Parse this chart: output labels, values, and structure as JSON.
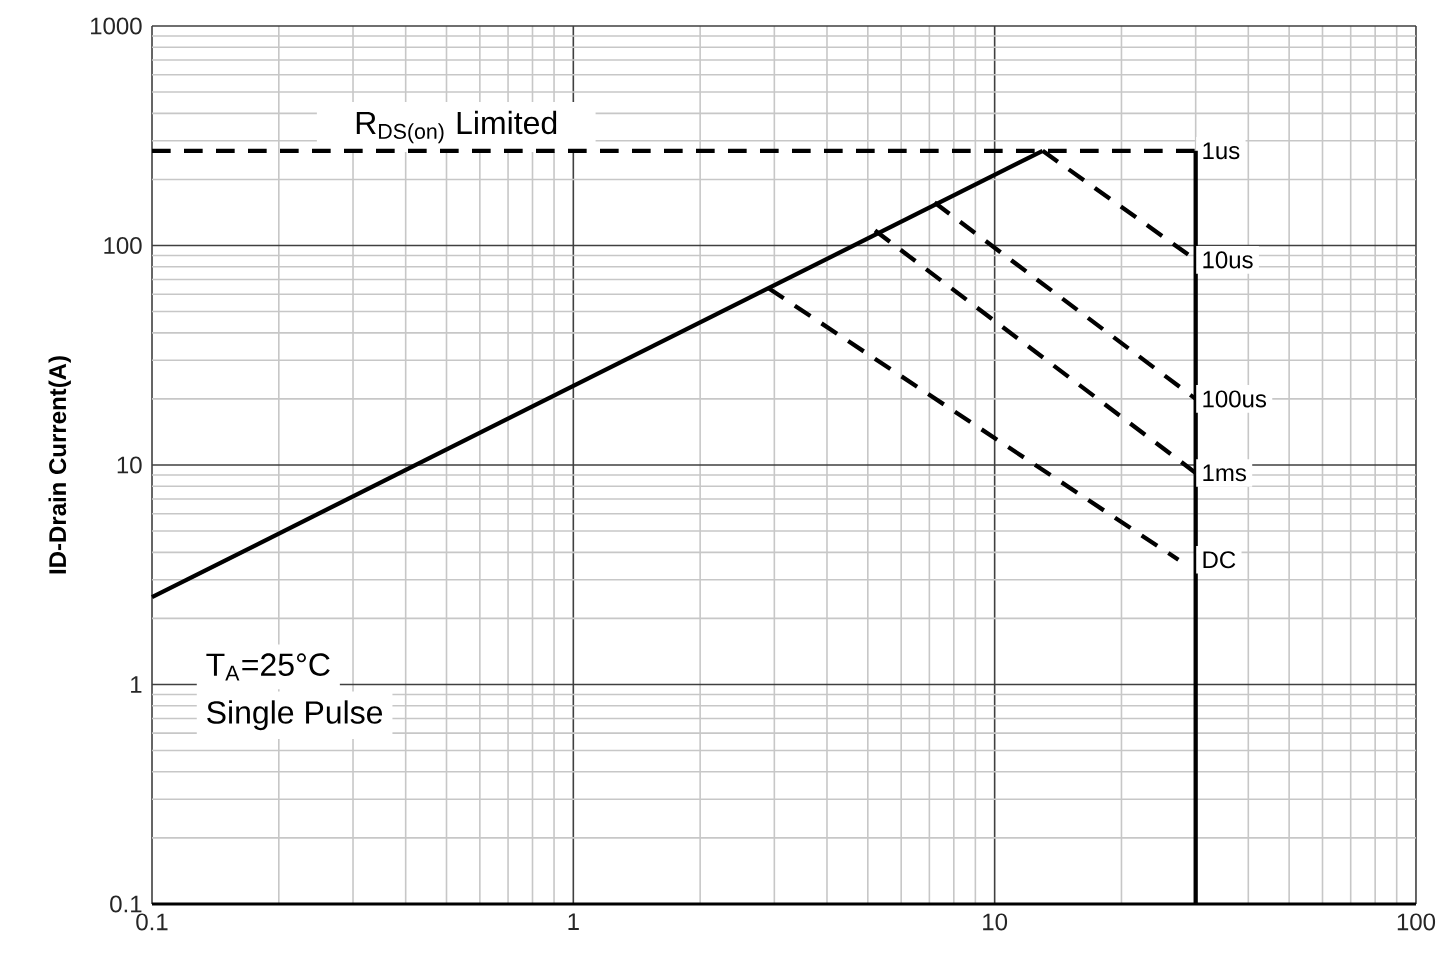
{
  "chart_data": {
    "type": "line",
    "ylabel": "ID-Drain Current(A)",
    "log": "xy",
    "grid": true,
    "xlim": [
      0.1,
      100
    ],
    "ylim": [
      0.1,
      1000
    ],
    "xticks": [
      0.1,
      1,
      10,
      100
    ],
    "yticks": [
      0.1,
      1,
      10,
      100,
      1000
    ],
    "annotations": [
      "R$_{DS(on)}$ Limited",
      "T$_{A}$=25°C",
      "Single Pulse"
    ],
    "series": [
      {
        "x": [
          0.1,
          13
        ],
        "values": [
          2.5,
          270
        ],
        "color": "#000000",
        "line_style": "solid"
      },
      {
        "name": "1us",
        "x": [
          0.1,
          30
        ],
        "values": [
          270,
          270
        ],
        "color": "#000000",
        "line_style": "dashed"
      },
      {
        "x": [
          30,
          30
        ],
        "values": [
          270,
          0.1
        ],
        "color": "#000000",
        "line_style": "solid"
      },
      {
        "name": "10us",
        "x": [
          13,
          30
        ],
        "values": [
          270,
          86
        ],
        "color": "#000000",
        "line_style": "dashed"
      },
      {
        "name": "100us",
        "x": [
          7.2,
          30
        ],
        "values": [
          157,
          20
        ],
        "color": "#000000",
        "line_style": "dashed"
      },
      {
        "name": "1ms",
        "x": [
          5.2,
          30
        ],
        "values": [
          117,
          9.2
        ],
        "color": "#000000",
        "line_style": "dashed"
      },
      {
        "name": "DC",
        "x": [
          2.9,
          27.3
        ],
        "values": [
          64,
          3.7
        ],
        "color": "#000000",
        "line_style": "dashed"
      }
    ]
  }
}
